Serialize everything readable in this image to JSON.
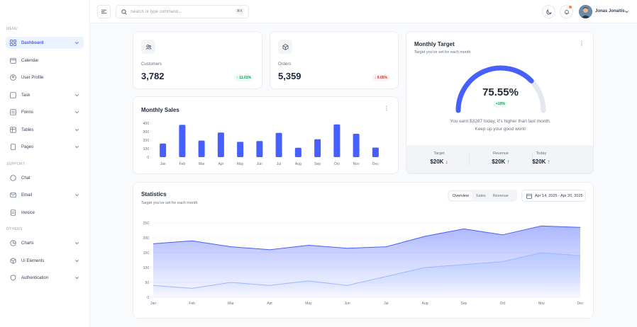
{
  "sidebar": {
    "menu_heading": "MENU",
    "support_heading": "SUPPORT",
    "others_heading": "OTHERS",
    "items": [
      {
        "label": "Dashboard",
        "icon": "grid-icon"
      },
      {
        "label": "Calendar",
        "icon": "calendar-icon"
      },
      {
        "label": "User Profile",
        "icon": "user-icon"
      },
      {
        "label": "Task",
        "icon": "task-icon"
      },
      {
        "label": "Forms",
        "icon": "forms-icon"
      },
      {
        "label": "Tables",
        "icon": "table-icon"
      },
      {
        "label": "Pages",
        "icon": "pages-icon"
      },
      {
        "label": "Chat",
        "icon": "chat-icon"
      },
      {
        "label": "Email",
        "icon": "mail-icon"
      },
      {
        "label": "Invoice",
        "icon": "invoice-icon"
      },
      {
        "label": "Charts",
        "icon": "chart-icon"
      },
      {
        "label": "Ui Elements",
        "icon": "cube-icon"
      },
      {
        "label": "Authentication",
        "icon": "shield-icon"
      }
    ]
  },
  "header": {
    "search_placeholder": "Search or type command...",
    "shortcut": "⌘K",
    "user_name": "Jonas Jonaitis"
  },
  "metrics": {
    "customers": {
      "label": "Customers",
      "value": "3,782",
      "change": "↑ 11.01%"
    },
    "orders": {
      "label": "Orders",
      "value": "5,359",
      "change": "↓ 9.05%"
    }
  },
  "target": {
    "title": "Monthly Target",
    "subtitle": "Target you've set for each month",
    "percent": "75.55%",
    "percent_value": 75.55,
    "delta": "+10%",
    "message_line1": "You earn $3287 today, it's higher than last month.",
    "message_line2": "Keep up your good work!",
    "target_label": "Target",
    "target_value": "$20K",
    "target_arrow": "↓",
    "revenue_label": "Revenue",
    "revenue_value": "$20K",
    "revenue_arrow": "↑",
    "today_label": "Today",
    "today_value": "$20K",
    "today_arrow": "↑"
  },
  "statistics": {
    "title": "Statistics",
    "subtitle": "Target you've set for each month",
    "tabs": [
      "Overview",
      "Sales",
      "Revenue"
    ],
    "date_range": "Apr 14, 2025 - Apr 20, 2025"
  },
  "colors": {
    "accent": "#465fff",
    "accent_light": "#9cb9ff",
    "up": "#039855",
    "down": "#d92d20"
  },
  "chart_data": [
    {
      "type": "bar",
      "title": "Monthly Sales",
      "categories": [
        "Jan",
        "Feb",
        "Mar",
        "Apr",
        "May",
        "Jun",
        "Jul",
        "Aug",
        "Sep",
        "Oct",
        "Nov",
        "Dec"
      ],
      "values": [
        160,
        380,
        195,
        290,
        180,
        190,
        285,
        110,
        210,
        385,
        275,
        112
      ],
      "ylim": [
        0,
        400
      ],
      "yticks": [
        0,
        100,
        200,
        300,
        400
      ]
    },
    {
      "type": "area",
      "categories": [
        "Jan",
        "Feb",
        "Mar",
        "Apr",
        "May",
        "Jun",
        "Jul",
        "Aug",
        "Sep",
        "Oct",
        "Nov",
        "Dec"
      ],
      "series": [
        {
          "values": [
            180,
            190,
            170,
            160,
            175,
            165,
            170,
            205,
            230,
            210,
            240,
            235
          ]
        },
        {
          "values": [
            40,
            30,
            50,
            40,
            55,
            40,
            70,
            100,
            110,
            120,
            150,
            140
          ]
        }
      ],
      "ylim": [
        0,
        250
      ],
      "yticks": [
        0,
        50,
        100,
        150,
        200,
        250
      ]
    }
  ]
}
